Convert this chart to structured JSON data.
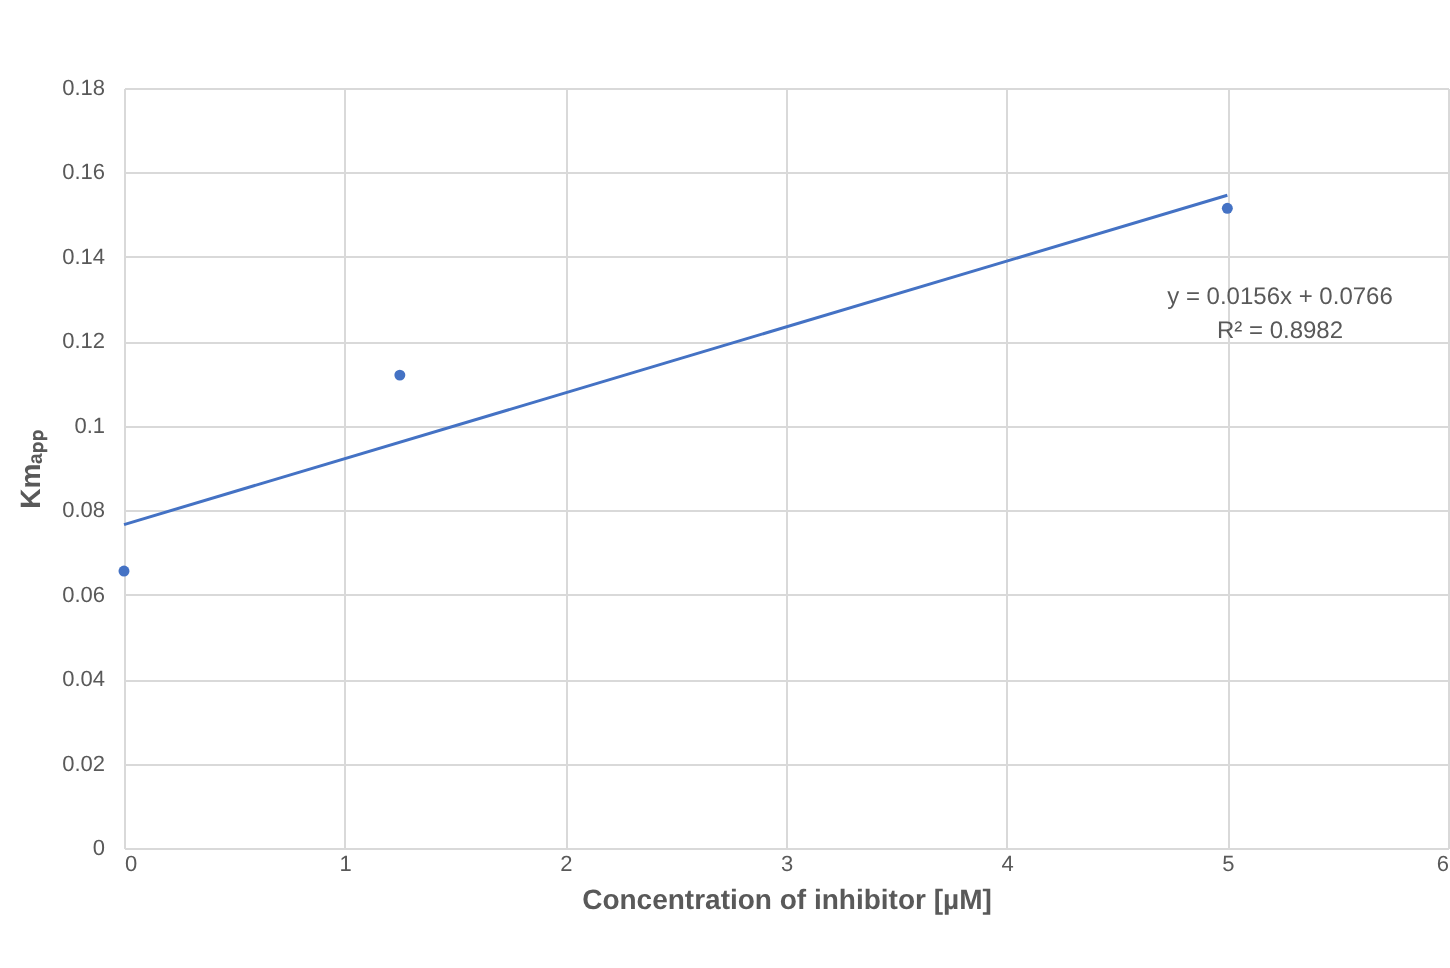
{
  "chart_data": {
    "type": "scatter",
    "xlabel": "Concentration of inhibitor [µM]",
    "ylabel": "Kmₐₚₚ",
    "xlim": [
      0,
      6
    ],
    "xticks": [
      0,
      1,
      2,
      3,
      4,
      5,
      6
    ],
    "ylim": [
      0,
      0.18
    ],
    "yticks": [
      0,
      0.02,
      0.04,
      0.06,
      0.08,
      0.1,
      0.12,
      0.14,
      0.16,
      0.18
    ],
    "grid": true,
    "annotations": [
      "y = 0.0156x + 0.0766",
      "R² = 0.8982"
    ],
    "series": [
      {
        "marker": "circle",
        "color": "#4472c4",
        "x": [
          0,
          1.25,
          5
        ],
        "values": [
          0.0656,
          0.112,
          0.1515
        ]
      },
      {
        "type": "line",
        "color": "#4472c4",
        "x": [
          0,
          5
        ],
        "values": [
          0.0766,
          0.1546
        ]
      }
    ]
  }
}
